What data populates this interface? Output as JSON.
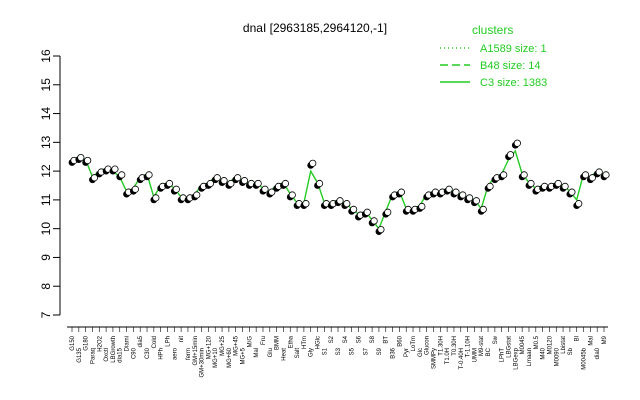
{
  "chart_data": {
    "type": "line",
    "title": "dnaI [2963185,2964120,-1]",
    "xlabel": "",
    "ylabel": "",
    "ylim": [
      7,
      16
    ],
    "yticks": [
      7,
      8,
      9,
      10,
      11,
      12,
      13,
      14,
      15,
      16
    ],
    "grid": false,
    "legend_placement": "top-right",
    "legend_title": "clusters",
    "colors": {
      "series": "#22cc22",
      "points": "#000000",
      "axis": "#000000"
    },
    "legend": [
      {
        "label": "A1589 size: 1",
        "style": "dotted"
      },
      {
        "label": "B48 size: 14",
        "style": "dashed"
      },
      {
        "label": "C3 size: 1383",
        "style": "solid"
      }
    ],
    "x_tick_labels": [
      "G150",
      "G135",
      "G180",
      "Paraq",
      "H2O2",
      "Oxctl",
      "LBGrowth",
      "dia15",
      "Diami",
      "C90",
      "dia5",
      "C30",
      "Cold",
      "HPh",
      "LPh",
      "aero",
      "nit",
      "ferm",
      "GM+15min",
      "GM+30min",
      "MG+120",
      "MG+10",
      "MG+25",
      "MG+60",
      "MG+45",
      "MG+5",
      "M/G",
      "Mal",
      "Fru",
      "Glu",
      "BMM",
      "Heat",
      "Etha",
      "Salt",
      "HTm",
      "Gly",
      "HGlc",
      "S1",
      "S2",
      "S3",
      "S4",
      "S5",
      "S6",
      "S7",
      "S8",
      "S9",
      "BT",
      "B36",
      "B60",
      "Pyr",
      "LoTm",
      "Glc",
      "Glucon",
      "SMMPy",
      "T1.30H",
      "T1.0H",
      "T0.30H",
      "T-0.40H",
      "T-1.10H",
      "UMM",
      "M9-stat",
      "BC",
      "Sw",
      "LPhT",
      "LBGstat",
      "LBGexp",
      "M0045",
      "Lmaan",
      "M0.5",
      "M40",
      "M0120",
      "M0090",
      "Lbistat",
      "Sb",
      "Bl",
      "M0045b",
      "Mal",
      "dia0",
      "M9"
    ],
    "series": [
      {
        "style": "solid",
        "values": [
          12.4,
          12.5,
          12.4,
          11.8,
          12.0,
          12.1,
          12.0,
          11.8,
          11.3,
          11.4,
          11.8,
          11.9,
          11.1,
          11.5,
          11.6,
          11.4,
          11.1,
          11.1,
          11.2,
          11.5,
          11.6,
          11.8,
          11.7,
          11.6,
          11.8,
          11.7,
          11.6,
          11.6,
          11.4,
          11.3,
          11.5,
          11.6,
          11.2,
          10.9,
          10.9,
          12.0,
          11.6,
          10.9,
          10.9,
          11.0,
          10.9,
          10.7,
          10.5,
          10.6,
          10.3,
          10.0,
          10.6,
          11.2,
          11.3,
          10.7,
          10.7,
          10.8,
          11.2,
          11.3,
          11.3,
          11.4,
          11.3,
          11.2,
          11.1,
          11.0,
          10.7,
          11.5,
          11.8,
          11.9,
          12.4,
          12.7,
          11.9,
          11.6,
          11.4,
          11.5,
          11.5,
          11.6,
          11.5,
          11.3,
          11.0,
          11.9,
          11.8,
          12.0,
          11.9
        ]
      },
      {
        "style": "points",
        "values": [
          12.3,
          12.4,
          12.3,
          11.7,
          11.9,
          12.0,
          12.0,
          11.8,
          11.2,
          11.3,
          11.7,
          11.8,
          11.0,
          11.4,
          11.5,
          11.3,
          11.0,
          11.0,
          11.1,
          11.4,
          11.5,
          11.7,
          11.6,
          11.5,
          11.7,
          11.6,
          11.5,
          11.5,
          11.3,
          11.2,
          11.4,
          11.5,
          11.1,
          10.8,
          10.8,
          12.2,
          11.5,
          10.8,
          10.8,
          10.9,
          10.8,
          10.6,
          10.4,
          10.5,
          10.2,
          9.9,
          10.5,
          11.1,
          11.2,
          10.6,
          10.6,
          10.7,
          11.1,
          11.2,
          11.2,
          11.3,
          11.2,
          11.1,
          11.0,
          10.9,
          10.6,
          11.4,
          11.7,
          11.8,
          12.5,
          12.9,
          11.8,
          11.5,
          11.3,
          11.4,
          11.4,
          11.5,
          11.4,
          11.2,
          10.8,
          11.8,
          11.7,
          11.9,
          11.8
        ]
      }
    ]
  }
}
